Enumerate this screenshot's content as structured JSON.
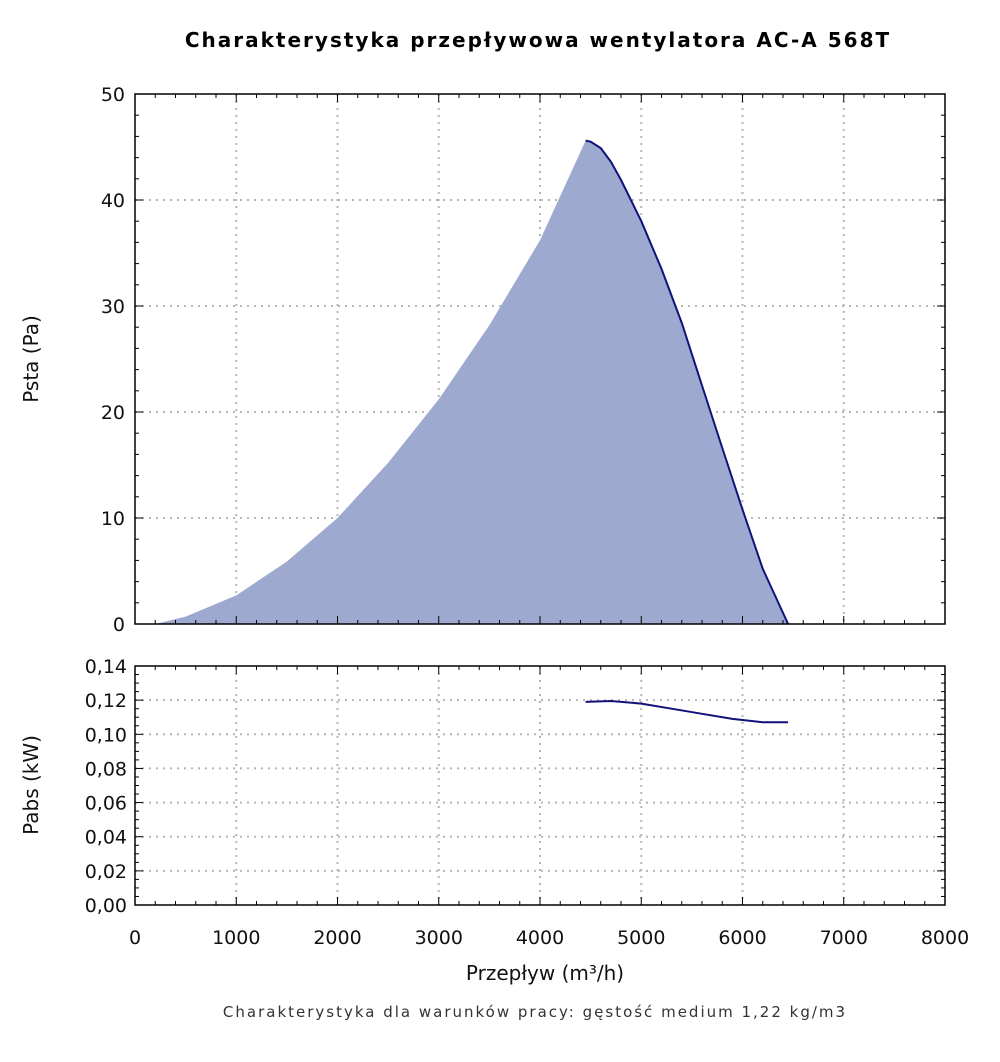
{
  "chart_data": [
    {
      "type": "area",
      "title": "Charakterystyka przepływowa wentylatora AC-A 568T",
      "ylabel": "Psta (Pa)",
      "xlabel": "",
      "xlim": [
        0,
        8000
      ],
      "ylim": [
        0,
        50
      ],
      "grid": true,
      "x_ticks": [
        "0",
        "1000",
        "2000",
        "3000",
        "4000",
        "5000",
        "6000",
        "7000",
        "8000"
      ],
      "y_ticks": [
        "0",
        "10",
        "20",
        "30",
        "40",
        "50"
      ],
      "colors": {
        "fill": "#9ea9cf",
        "line": "#10127a"
      },
      "series": [
        {
          "x": [
            200,
            500,
            1000,
            1500,
            2000,
            2500,
            3000,
            3500,
            4000,
            4450,
            4500,
            4600,
            4700,
            4800,
            5000,
            5200,
            5400,
            5600,
            5800,
            6000,
            6200,
            6450
          ],
          "y": [
            0,
            0.7,
            2.7,
            5.9,
            10.0,
            15.2,
            21.2,
            28.2,
            36.2,
            45.6,
            45.5,
            44.9,
            43.6,
            41.9,
            38.0,
            33.5,
            28.4,
            22.5,
            16.6,
            10.8,
            5.2,
            0
          ]
        }
      ]
    },
    {
      "type": "line",
      "ylabel": "Pabs (kW)",
      "xlabel": "Przepływ (m³/h)",
      "xlim": [
        0,
        8000
      ],
      "ylim": [
        0,
        0.14
      ],
      "grid": true,
      "x_ticks": [
        "0",
        "1000",
        "2000",
        "3000",
        "4000",
        "5000",
        "6000",
        "7000",
        "8000"
      ],
      "y_ticks": [
        "0,00",
        "0,02",
        "0,04",
        "0,06",
        "0,08",
        "0,10",
        "0,12",
        "0,14"
      ],
      "colors": {
        "line": "#10127a"
      },
      "series": [
        {
          "x": [
            4450,
            4700,
            5000,
            5300,
            5600,
            5900,
            6200,
            6450
          ],
          "y": [
            0.119,
            0.1195,
            0.118,
            0.115,
            0.112,
            0.109,
            0.107,
            0.107
          ]
        }
      ]
    }
  ],
  "footnote": "Charakterystyka dla warunków pracy: gęstość medium 1,22 kg/m3"
}
